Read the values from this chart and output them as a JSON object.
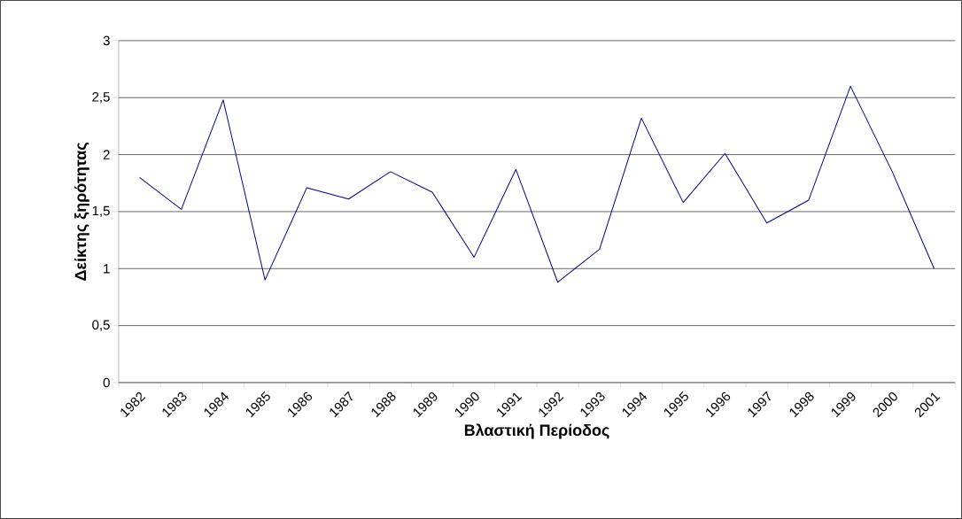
{
  "chart_data": {
    "type": "line",
    "xlabel": "Βλαστική Περίοδος",
    "ylabel": "Δείκτης ξηρότητας",
    "categories": [
      "1982",
      "1983",
      "1984",
      "1985",
      "1986",
      "1987",
      "1988",
      "1989",
      "1990",
      "1991",
      "1992",
      "1993",
      "1994",
      "1995",
      "1996",
      "1997",
      "1998",
      "1999",
      "2000",
      "2001"
    ],
    "series": [
      {
        "color": "#000080",
        "values": [
          1.8,
          1.52,
          2.48,
          0.9,
          1.71,
          1.61,
          1.85,
          1.67,
          1.1,
          1.87,
          0.88,
          1.17,
          2.32,
          1.58,
          2.01,
          1.4,
          1.6,
          2.6,
          1.85,
          1.0
        ]
      }
    ],
    "ylim": [
      0,
      3
    ],
    "yticks": [
      0,
      {
        "value": 0.5,
        "label": "0,5"
      },
      1,
      {
        "value": 1.5,
        "label": "1,5"
      },
      2,
      {
        "value": 2.5,
        "label": "2,5"
      },
      3
    ],
    "grid": "y",
    "marker": "none",
    "line_style": "solid"
  }
}
